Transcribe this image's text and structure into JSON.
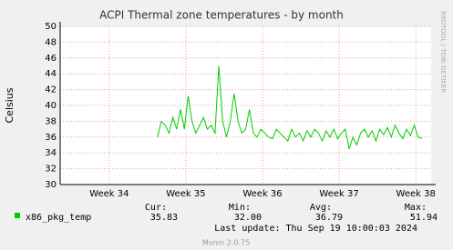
{
  "chart_data": {
    "type": "line",
    "title": "ACPI Thermal zone temperatures - by month",
    "y_label": "Celsius",
    "side_text": "RRDTOOL / TOBI OETIKER",
    "xlim": [
      33.36,
      38.2
    ],
    "xticks": [
      {
        "value": 34,
        "label": "Week 34"
      },
      {
        "value": 35,
        "label": "Week 35"
      },
      {
        "value": 36,
        "label": "Week 36"
      },
      {
        "value": 37,
        "label": "Week 37"
      },
      {
        "value": 38,
        "label": "Week 38"
      }
    ],
    "ylim": [
      30,
      50
    ],
    "yticks": [
      30,
      32,
      34,
      36,
      38,
      40,
      42,
      44,
      46,
      48,
      50
    ],
    "grid": true,
    "x": [
      34.63,
      34.68,
      34.73,
      34.78,
      34.83,
      34.88,
      34.93,
      34.98,
      35.03,
      35.08,
      35.13,
      35.18,
      35.23,
      35.28,
      35.33,
      35.38,
      35.43,
      35.48,
      35.53,
      35.58,
      35.63,
      35.68,
      35.73,
      35.78,
      35.83,
      35.88,
      35.93,
      35.98,
      36.03,
      36.08,
      36.13,
      36.18,
      36.23,
      36.28,
      36.33,
      36.38,
      36.43,
      36.48,
      36.53,
      36.58,
      36.63,
      36.68,
      36.73,
      36.78,
      36.83,
      36.88,
      36.93,
      36.98,
      37.03,
      37.08,
      37.13,
      37.18,
      37.23,
      37.28,
      37.33,
      37.38,
      37.43,
      37.48,
      37.53,
      37.58,
      37.63,
      37.68,
      37.73,
      37.78,
      37.83,
      37.88,
      37.93,
      37.98,
      38.03,
      38.08
    ],
    "series": [
      {
        "name": "x86_pkg_temp",
        "color": "#00cc00",
        "values": [
          36,
          38,
          37.5,
          36.5,
          38.5,
          37,
          39.5,
          37,
          41.2,
          38,
          36.5,
          37.5,
          38.5,
          37,
          37.5,
          36.5,
          45,
          38,
          36,
          38,
          41.5,
          38,
          36.5,
          37,
          39.5,
          36.5,
          36,
          37,
          36.5,
          36,
          35.8,
          37,
          36.5,
          36,
          35.5,
          37,
          36,
          36.5,
          35.5,
          36.8,
          36,
          37,
          36.5,
          35.5,
          36.8,
          36,
          37,
          35.8,
          36.5,
          37,
          34.5,
          36,
          35,
          36.5,
          37,
          36,
          36.8,
          35.5,
          37,
          36.3,
          37.2,
          36,
          37.5,
          36.5,
          35.8,
          37,
          36.2,
          37.5,
          36,
          35.83
        ]
      }
    ],
    "legend_table": {
      "headers": [
        "Cur:",
        "Min:",
        "Avg:",
        "Max:"
      ],
      "values": [
        "35.83",
        "32.00",
        "36.79",
        "51.94"
      ]
    },
    "last_update": "Last update: Thu Sep 19 10:00:03 2024",
    "footer": "Munin 2.0.75"
  }
}
